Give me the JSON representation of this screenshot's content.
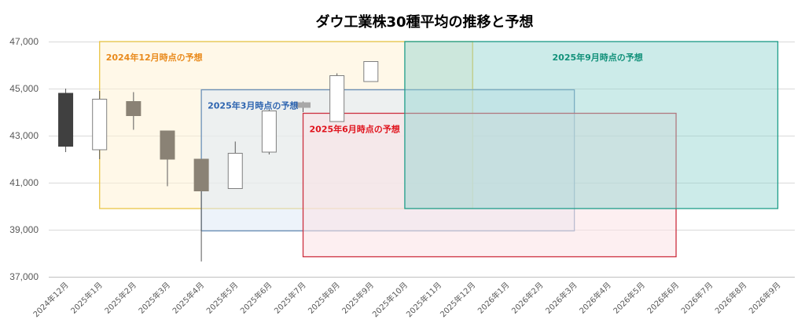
{
  "chart_data": {
    "type": "candlestick",
    "title": "ダウ工業株30種平均の推移と予想",
    "y_ticks": [
      "37,000",
      "39,000",
      "41,000",
      "43,000",
      "45,000",
      "47,000"
    ],
    "ylim": [
      37000,
      47000
    ],
    "grid": true,
    "categories": [
      "2024年12月",
      "2025年1月",
      "2025年2月",
      "2025年3月",
      "2025年4月",
      "2025年5月",
      "2025年6月",
      "2025年7月",
      "2025年8月",
      "2025年9月",
      "2025年10月",
      "2025年11月",
      "2025年12月",
      "2026年1月",
      "2026年2月",
      "2026年3月",
      "2026年4月",
      "2026年5月",
      "2026年6月",
      "2026年7月",
      "2026年8月",
      "2026年9月"
    ],
    "candles": [
      {
        "month": "2024年12月",
        "open": 44800,
        "high": 45000,
        "low": 42300,
        "close": 42550,
        "fill": "#404040"
      },
      {
        "month": "2025年1月",
        "open": 42400,
        "high": 44900,
        "low": 42000,
        "close": 44550,
        "fill": "#ffffff"
      },
      {
        "month": "2025年2月",
        "open": 44450,
        "high": 44850,
        "low": 43250,
        "close": 43850,
        "fill": "#8a8275"
      },
      {
        "month": "2025年3月",
        "open": 43200,
        "high": 43200,
        "low": 40850,
        "close": 42000,
        "fill": "#8a8275"
      },
      {
        "month": "2025年4月",
        "open": 42000,
        "high": 42000,
        "low": 37650,
        "close": 40650,
        "fill": "#8a8275"
      },
      {
        "month": "2025年5月",
        "open": 40750,
        "high": 42750,
        "low": 40750,
        "close": 42250,
        "fill": "#ffffff"
      },
      {
        "month": "2025年6月",
        "open": 42300,
        "high": 44100,
        "low": 42200,
        "close": 44050,
        "fill": "#ffffff"
      },
      {
        "month": "2025年7月",
        "open": 44400,
        "high": 44450,
        "low": 44000,
        "close": 44200,
        "fill": "#a8a8a8"
      },
      {
        "month": "2025年8月",
        "open": 43600,
        "high": 45650,
        "low": 43600,
        "close": 45550,
        "fill": "#ffffff"
      },
      {
        "month": "2025年9月",
        "open": 45300,
        "high": 46150,
        "low": 45300,
        "close": 46150,
        "fill": "#ffffff"
      }
    ],
    "forecast_ranges": [
      {
        "label": "2024年12月時点の予想",
        "x_from": "2025年1月",
        "x_to": "2025年12月",
        "y_from": 39900,
        "y_to": 47000,
        "color": "#e9c547",
        "fill": "#fff3d6",
        "text_color": "#e98a1c"
      },
      {
        "label": "2025年3月時点の予想",
        "x_from": "2025年4月",
        "x_to": "2026年3月",
        "y_from": 38950,
        "y_to": 44950,
        "color": "#6a8fb8",
        "fill": "#dfe9f5",
        "text_color": "#2e65b0"
      },
      {
        "label": "2025年6月時点の予想",
        "x_from": "2025年7月",
        "x_to": "2026年6月",
        "y_from": 37850,
        "y_to": 43950,
        "color": "#cc2f3f",
        "fill": "#fbe1e6",
        "text_color": "#e0141e"
      },
      {
        "label": "2025年9月時点の予想",
        "x_from": "2025年10月",
        "x_to": "2026年9月",
        "y_from": 39900,
        "y_to": 47000,
        "color": "#1f9e8a",
        "fill": "#8fd3cf",
        "text_color": "#12917a"
      }
    ]
  }
}
